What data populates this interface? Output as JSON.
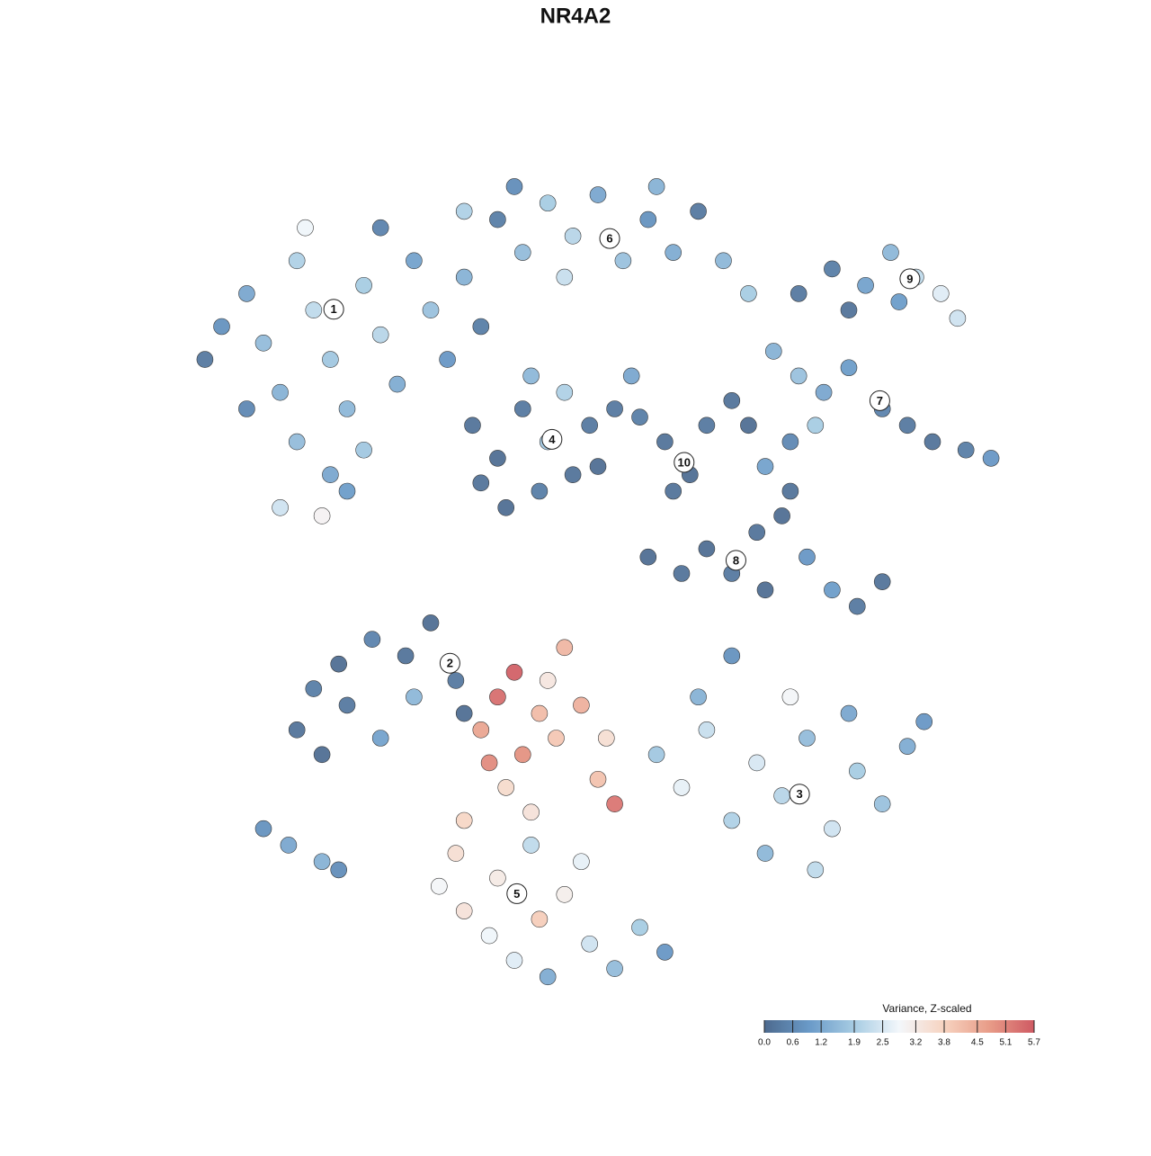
{
  "chart_data": {
    "type": "scatter",
    "title": "NR4A2",
    "xlim": [
      0,
      100
    ],
    "ylim": [
      0,
      100
    ],
    "x": [
      3,
      5,
      8,
      10,
      12,
      14,
      16,
      18,
      20,
      22,
      24,
      26,
      28,
      30,
      32,
      14,
      18,
      12,
      17,
      20,
      8,
      15,
      24,
      34,
      36,
      22,
      38,
      41,
      44,
      47,
      50,
      53,
      56,
      59,
      62,
      65,
      68,
      46,
      40,
      57,
      34,
      35,
      38,
      41,
      44,
      47,
      39,
      43,
      46,
      49,
      36,
      42,
      50,
      58,
      61,
      63,
      59,
      55,
      52,
      54,
      66,
      68,
      71,
      74,
      77,
      80,
      84,
      87,
      90,
      94,
      97,
      73,
      76,
      70,
      74,
      78,
      82,
      85,
      88,
      91,
      93,
      80,
      86,
      56,
      60,
      63,
      66,
      69,
      72,
      75,
      78,
      81,
      84,
      70,
      73,
      14,
      17,
      20,
      19,
      23,
      27,
      30,
      33,
      34,
      24,
      28,
      16,
      10,
      13,
      17,
      19,
      36,
      38,
      40,
      41,
      43,
      39,
      45,
      48,
      51,
      52,
      50,
      37,
      44,
      42,
      46,
      34,
      31,
      34,
      37,
      40,
      43,
      46,
      49,
      52,
      55,
      58,
      38,
      44,
      48,
      33,
      42,
      57,
      60,
      63,
      66,
      69,
      72,
      75,
      78,
      81,
      84,
      87,
      89,
      76,
      70,
      62,
      66,
      73,
      80
    ],
    "y": [
      76,
      80,
      84,
      78,
      72,
      88,
      82,
      76,
      70,
      85,
      79,
      73,
      88,
      82,
      76,
      66,
      62,
      58,
      57,
      60,
      70,
      92,
      92,
      86,
      80,
      65,
      93,
      89,
      95,
      91,
      96,
      88,
      93,
      89,
      94,
      88,
      84,
      86,
      97,
      97,
      94,
      68,
      64,
      70,
      66,
      62,
      58,
      60,
      72,
      68,
      61,
      74,
      63,
      66,
      62,
      68,
      60,
      69,
      70,
      74,
      71,
      68,
      77,
      74,
      72,
      75,
      70,
      68,
      66,
      65,
      64,
      66,
      68,
      63,
      84,
      87,
      85,
      89,
      86,
      84,
      81,
      82,
      83,
      52,
      50,
      53,
      50,
      55,
      57,
      52,
      48,
      46,
      49,
      48,
      60,
      31,
      28,
      34,
      39,
      42,
      40,
      44,
      37,
      33,
      30,
      35,
      36,
      19,
      17,
      15,
      14,
      31,
      35,
      38,
      28,
      33,
      24,
      30,
      34,
      30,
      22,
      25,
      27,
      37,
      21,
      41,
      20,
      12,
      9,
      6,
      3,
      8,
      11,
      5,
      2,
      7,
      4,
      13,
      1,
      15,
      16,
      17,
      28,
      24,
      31,
      20,
      27,
      23,
      30,
      19,
      26,
      22,
      29,
      32,
      14,
      16,
      35,
      40,
      35,
      33
    ],
    "values": [
      0.3,
      0.8,
      1.2,
      1.6,
      1.4,
      2.0,
      2.2,
      1.8,
      1.5,
      1.9,
      2.1,
      1.3,
      1.1,
      1.7,
      0.9,
      1.6,
      1.2,
      2.4,
      3.0,
      1.0,
      0.6,
      2.8,
      0.5,
      1.4,
      0.4,
      1.8,
      0.4,
      1.6,
      1.9,
      2.1,
      1.2,
      1.7,
      0.8,
      1.3,
      0.3,
      1.5,
      1.9,
      2.3,
      0.7,
      1.4,
      2.0,
      0.2,
      0.1,
      0.3,
      1.8,
      0.2,
      0.1,
      0.4,
      2.0,
      0.3,
      0.2,
      1.5,
      0.1,
      0.2,
      0.1,
      0.3,
      0.2,
      0.4,
      0.3,
      1.2,
      0.2,
      0.1,
      1.4,
      1.7,
      1.2,
      1.0,
      0.5,
      0.3,
      0.2,
      0.4,
      0.9,
      0.6,
      1.9,
      1.1,
      0.3,
      0.4,
      1.1,
      1.5,
      2.2,
      2.6,
      2.4,
      0.2,
      1.0,
      0.1,
      0.2,
      0.1,
      0.3,
      0.2,
      0.1,
      0.9,
      1.0,
      0.3,
      0.2,
      0.1,
      0.2,
      0.2,
      0.1,
      0.3,
      0.1,
      0.5,
      0.2,
      0.1,
      0.3,
      0.1,
      1.1,
      1.5,
      0.4,
      0.8,
      1.2,
      1.4,
      0.7,
      4.6,
      5.4,
      5.6,
      4.9,
      4.2,
      3.6,
      4.0,
      4.4,
      3.5,
      5.3,
      4.1,
      5.0,
      3.3,
      3.4,
      4.3,
      3.7,
      2.9,
      3.4,
      2.8,
      2.6,
      3.9,
      3.1,
      2.4,
      1.6,
      1.9,
      0.9,
      3.2,
      1.3,
      2.7,
      3.5,
      2.2,
      1.8,
      2.7,
      2.3,
      2.0,
      2.5,
      2.1,
      1.6,
      2.4,
      1.9,
      1.7,
      1.3,
      0.9,
      2.2,
      1.5,
      1.4,
      0.8,
      2.9,
      1.2
    ],
    "clusters": [
      {
        "label": "1",
        "x": 18.4,
        "y": 82.1
      },
      {
        "label": "2",
        "x": 32.3,
        "y": 39.1
      },
      {
        "label": "3",
        "x": 74.1,
        "y": 23.2
      },
      {
        "label": "4",
        "x": 44.5,
        "y": 66.3
      },
      {
        "label": "5",
        "x": 40.3,
        "y": 11.1
      },
      {
        "label": "6",
        "x": 51.4,
        "y": 90.7
      },
      {
        "label": "7",
        "x": 83.7,
        "y": 71.0
      },
      {
        "label": "8",
        "x": 66.5,
        "y": 51.6
      },
      {
        "label": "9",
        "x": 87.3,
        "y": 85.8
      },
      {
        "label": "10",
        "x": 60.3,
        "y": 63.5
      }
    ],
    "colorbar": {
      "title": "Variance, Z-scaled",
      "clim": [
        0,
        5.7
      ],
      "colors": [
        "#4d6a8e",
        "#6a9ac8",
        "#a7cce3",
        "#f3f7fb",
        "#f7d3c0",
        "#e89c88",
        "#cf5a63"
      ],
      "ticks": [
        {
          "value": 0,
          "label": "0.0"
        },
        0.6,
        1.2,
        1.9,
        2.5,
        3.2,
        3.8,
        4.5,
        5.1,
        5.7
      ]
    }
  }
}
